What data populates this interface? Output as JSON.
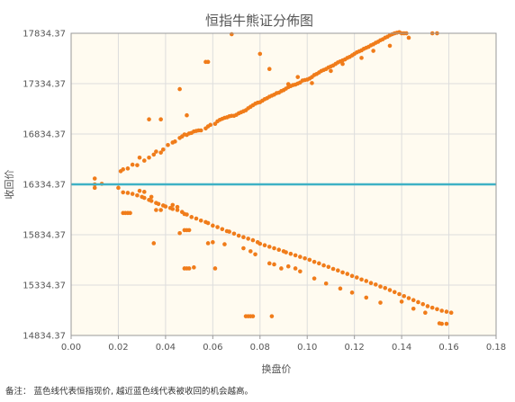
{
  "chart_data": {
    "type": "scatter",
    "title": "恒指牛熊证分佈图",
    "xlabel": "换盘价",
    "ylabel": "收回价",
    "xlim": [
      0,
      0.18
    ],
    "ylim": [
      14834.37,
      17834.37
    ],
    "x_ticks": [
      "0.00",
      "0.02",
      "0.04",
      "0.06",
      "0.08",
      "0.10",
      "0.12",
      "0.14",
      "0.16",
      "0.18"
    ],
    "y_ticks": [
      "14834.37",
      "15334.37",
      "15834.37",
      "16334.37",
      "16834.37",
      "17334.37",
      "17834.37"
    ],
    "grid": true,
    "reference_line": {
      "y": 16334.37,
      "color": "#3fb1c5"
    },
    "colors": {
      "points": "#f07c1a",
      "plot_background": "#fffbf0",
      "grid": "#dddddd",
      "axis": "#999999"
    },
    "series": [
      {
        "points": [
          [
            0.01,
            16392
          ],
          [
            0.01,
            16334
          ],
          [
            0.01,
            16300
          ],
          [
            0.013,
            16340
          ],
          [
            0.021,
            16465
          ],
          [
            0.022,
            16483
          ],
          [
            0.024,
            16492
          ],
          [
            0.026,
            16530
          ],
          [
            0.028,
            16525
          ],
          [
            0.029,
            16600
          ],
          [
            0.031,
            16570
          ],
          [
            0.033,
            16600
          ],
          [
            0.035,
            16630
          ],
          [
            0.036,
            16660
          ],
          [
            0.038,
            16650
          ],
          [
            0.039,
            16680
          ],
          [
            0.041,
            16725
          ],
          [
            0.043,
            16750
          ],
          [
            0.044,
            16760
          ],
          [
            0.046,
            16795
          ],
          [
            0.047,
            16810
          ],
          [
            0.048,
            16830
          ],
          [
            0.049,
            16825
          ],
          [
            0.05,
            16840
          ],
          [
            0.051,
            16845
          ],
          [
            0.052,
            16860
          ],
          [
            0.053,
            16865
          ],
          [
            0.054,
            16870
          ],
          [
            0.055,
            16870
          ],
          [
            0.057,
            16890
          ],
          [
            0.058,
            16910
          ],
          [
            0.059,
            16925
          ],
          [
            0.061,
            16935
          ],
          [
            0.062,
            16960
          ],
          [
            0.063,
            16975
          ],
          [
            0.064,
            16985
          ],
          [
            0.065,
            16995
          ],
          [
            0.066,
            17000
          ],
          [
            0.067,
            17010
          ],
          [
            0.068,
            17015
          ],
          [
            0.069,
            17015
          ],
          [
            0.07,
            17025
          ],
          [
            0.071,
            17040
          ],
          [
            0.072,
            17050
          ],
          [
            0.073,
            17060
          ],
          [
            0.074,
            17070
          ],
          [
            0.075,
            17090
          ],
          [
            0.076,
            17105
          ],
          [
            0.077,
            17120
          ],
          [
            0.078,
            17135
          ],
          [
            0.079,
            17145
          ],
          [
            0.08,
            17150
          ],
          [
            0.081,
            17165
          ],
          [
            0.082,
            17180
          ],
          [
            0.083,
            17190
          ],
          [
            0.084,
            17205
          ],
          [
            0.085,
            17215
          ],
          [
            0.086,
            17225
          ],
          [
            0.087,
            17240
          ],
          [
            0.088,
            17245
          ],
          [
            0.089,
            17260
          ],
          [
            0.09,
            17270
          ],
          [
            0.091,
            17285
          ],
          [
            0.092,
            17300
          ],
          [
            0.093,
            17310
          ],
          [
            0.094,
            17320
          ],
          [
            0.095,
            17325
          ],
          [
            0.096,
            17335
          ],
          [
            0.097,
            17345
          ],
          [
            0.098,
            17365
          ],
          [
            0.099,
            17370
          ],
          [
            0.1,
            17375
          ],
          [
            0.101,
            17385
          ],
          [
            0.102,
            17400
          ],
          [
            0.103,
            17420
          ],
          [
            0.104,
            17430
          ],
          [
            0.105,
            17445
          ],
          [
            0.106,
            17460
          ],
          [
            0.107,
            17470
          ],
          [
            0.108,
            17480
          ],
          [
            0.109,
            17495
          ],
          [
            0.11,
            17505
          ],
          [
            0.111,
            17515
          ],
          [
            0.112,
            17530
          ],
          [
            0.113,
            17545
          ],
          [
            0.114,
            17555
          ],
          [
            0.115,
            17565
          ],
          [
            0.116,
            17575
          ],
          [
            0.117,
            17590
          ],
          [
            0.118,
            17600
          ],
          [
            0.119,
            17615
          ],
          [
            0.12,
            17630
          ],
          [
            0.121,
            17645
          ],
          [
            0.122,
            17655
          ],
          [
            0.123,
            17665
          ],
          [
            0.124,
            17680
          ],
          [
            0.125,
            17690
          ],
          [
            0.126,
            17700
          ],
          [
            0.127,
            17715
          ],
          [
            0.128,
            17725
          ],
          [
            0.129,
            17740
          ],
          [
            0.13,
            17750
          ],
          [
            0.131,
            17765
          ],
          [
            0.132,
            17775
          ],
          [
            0.133,
            17790
          ],
          [
            0.134,
            17800
          ],
          [
            0.135,
            17815
          ],
          [
            0.136,
            17825
          ],
          [
            0.137,
            17834
          ],
          [
            0.138,
            17840
          ],
          [
            0.139,
            17845
          ],
          [
            0.14,
            17834
          ],
          [
            0.141,
            17834
          ],
          [
            0.142,
            17834
          ],
          [
            0.143,
            17790
          ],
          [
            0.153,
            17834
          ],
          [
            0.155,
            17834
          ],
          [
            0.033,
            16980
          ],
          [
            0.038,
            16980
          ],
          [
            0.046,
            17280
          ],
          [
            0.049,
            17020
          ],
          [
            0.057,
            17550
          ],
          [
            0.058,
            17550
          ],
          [
            0.068,
            17825
          ],
          [
            0.08,
            17630
          ],
          [
            0.084,
            17480
          ],
          [
            0.092,
            17330
          ],
          [
            0.096,
            17400
          ],
          [
            0.102,
            17340
          ],
          [
            0.11,
            17460
          ],
          [
            0.115,
            17530
          ],
          [
            0.123,
            17590
          ],
          [
            0.128,
            17660
          ],
          [
            0.135,
            17710
          ],
          [
            0.02,
            16300
          ],
          [
            0.022,
            16255
          ],
          [
            0.024,
            16250
          ],
          [
            0.026,
            16240
          ],
          [
            0.028,
            16225
          ],
          [
            0.03,
            16210
          ],
          [
            0.031,
            16200
          ],
          [
            0.033,
            16180
          ],
          [
            0.034,
            16170
          ],
          [
            0.036,
            16150
          ],
          [
            0.037,
            16140
          ],
          [
            0.039,
            16125
          ],
          [
            0.04,
            16115
          ],
          [
            0.042,
            16100
          ],
          [
            0.043,
            16090
          ],
          [
            0.045,
            16080
          ],
          [
            0.047,
            16060
          ],
          [
            0.048,
            16040
          ],
          [
            0.049,
            16035
          ],
          [
            0.051,
            16010
          ],
          [
            0.053,
            15995
          ],
          [
            0.055,
            15975
          ],
          [
            0.057,
            15960
          ],
          [
            0.058,
            15950
          ],
          [
            0.06,
            15925
          ],
          [
            0.062,
            15910
          ],
          [
            0.064,
            15890
          ],
          [
            0.066,
            15870
          ],
          [
            0.067,
            15865
          ],
          [
            0.069,
            15845
          ],
          [
            0.071,
            15825
          ],
          [
            0.073,
            15810
          ],
          [
            0.075,
            15795
          ],
          [
            0.077,
            15780
          ],
          [
            0.079,
            15760
          ],
          [
            0.08,
            15745
          ],
          [
            0.082,
            15730
          ],
          [
            0.084,
            15715
          ],
          [
            0.086,
            15700
          ],
          [
            0.088,
            15685
          ],
          [
            0.09,
            15670
          ],
          [
            0.091,
            15660
          ],
          [
            0.093,
            15645
          ],
          [
            0.095,
            15630
          ],
          [
            0.097,
            15615
          ],
          [
            0.099,
            15600
          ],
          [
            0.101,
            15585
          ],
          [
            0.103,
            15565
          ],
          [
            0.105,
            15550
          ],
          [
            0.107,
            15530
          ],
          [
            0.109,
            15515
          ],
          [
            0.111,
            15495
          ],
          [
            0.113,
            15480
          ],
          [
            0.115,
            15460
          ],
          [
            0.117,
            15445
          ],
          [
            0.119,
            15425
          ],
          [
            0.121,
            15410
          ],
          [
            0.123,
            15390
          ],
          [
            0.125,
            15375
          ],
          [
            0.127,
            15355
          ],
          [
            0.129,
            15340
          ],
          [
            0.131,
            15320
          ],
          [
            0.133,
            15305
          ],
          [
            0.135,
            15285
          ],
          [
            0.137,
            15265
          ],
          [
            0.139,
            15245
          ],
          [
            0.141,
            15225
          ],
          [
            0.143,
            15205
          ],
          [
            0.145,
            15185
          ],
          [
            0.147,
            15165
          ],
          [
            0.149,
            15145
          ],
          [
            0.151,
            15125
          ],
          [
            0.153,
            15110
          ],
          [
            0.155,
            15095
          ],
          [
            0.157,
            15080
          ],
          [
            0.159,
            15070
          ],
          [
            0.161,
            15060
          ],
          [
            0.022,
            16050
          ],
          [
            0.023,
            16050
          ],
          [
            0.024,
            16050
          ],
          [
            0.025,
            16050
          ],
          [
            0.036,
            16080
          ],
          [
            0.038,
            16080
          ],
          [
            0.046,
            15850
          ],
          [
            0.048,
            15880
          ],
          [
            0.049,
            15880
          ],
          [
            0.05,
            15880
          ],
          [
            0.058,
            15750
          ],
          [
            0.06,
            15760
          ],
          [
            0.065,
            15740
          ],
          [
            0.073,
            15700
          ],
          [
            0.076,
            15670
          ],
          [
            0.078,
            15640
          ],
          [
            0.084,
            15550
          ],
          [
            0.086,
            15540
          ],
          [
            0.089,
            15500
          ],
          [
            0.092,
            15520
          ],
          [
            0.095,
            15500
          ],
          [
            0.097,
            15470
          ],
          [
            0.103,
            15400
          ],
          [
            0.108,
            15350
          ],
          [
            0.114,
            15300
          ],
          [
            0.119,
            15260
          ],
          [
            0.125,
            15210
          ],
          [
            0.131,
            15160
          ],
          [
            0.031,
            16260
          ],
          [
            0.034,
            16210
          ],
          [
            0.029,
            16270
          ],
          [
            0.043,
            16130
          ],
          [
            0.045,
            16110
          ],
          [
            0.048,
            15500
          ],
          [
            0.049,
            15500
          ],
          [
            0.05,
            15500
          ],
          [
            0.052,
            15510
          ],
          [
            0.061,
            15500
          ],
          [
            0.074,
            15025
          ],
          [
            0.075,
            15025
          ],
          [
            0.076,
            15025
          ],
          [
            0.077,
            15025
          ],
          [
            0.085,
            15025
          ],
          [
            0.035,
            15750
          ],
          [
            0.14,
            15170
          ],
          [
            0.145,
            15100
          ],
          [
            0.15,
            15060
          ],
          [
            0.156,
            14955
          ],
          [
            0.157,
            14950
          ],
          [
            0.159,
            14950
          ]
        ]
      }
    ]
  },
  "footnote": "备注： 蓝色线代表恒指现价, 越近蓝色线代表被收回的机会越高。"
}
